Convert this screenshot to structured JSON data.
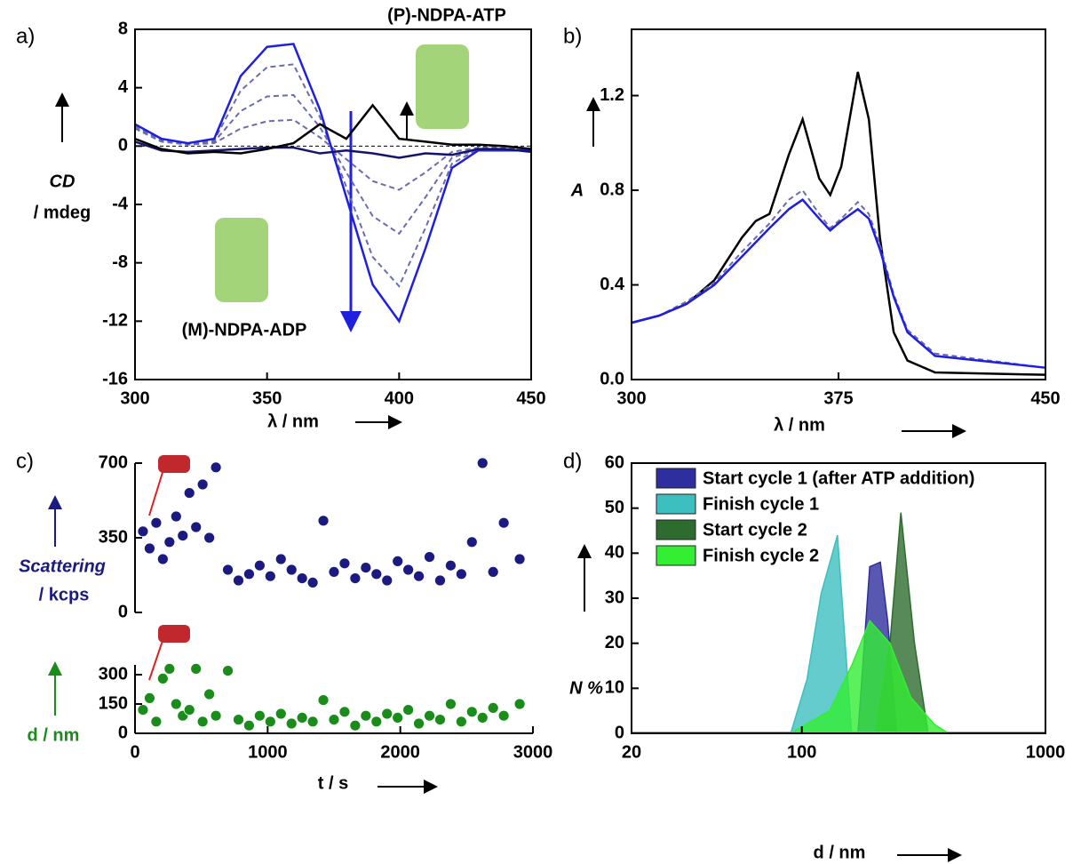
{
  "chart_data": [
    {
      "type": "line",
      "panel_label": "a)",
      "y_label": "CD",
      "y_unit": "/ mdeg",
      "x_label": "λ / nm",
      "annotations": [
        "(P)-NDPA-ATP",
        "(M)-NDPA-ADP"
      ],
      "zero_line": true,
      "xlim": [
        300,
        450
      ],
      "xticks": [
        300,
        350,
        400,
        450
      ],
      "ylim": [
        -16,
        8
      ],
      "yticks": [
        -16,
        -12,
        -8,
        -4,
        0,
        4,
        8
      ],
      "x": [
        300,
        310,
        320,
        330,
        340,
        350,
        360,
        370,
        380,
        390,
        400,
        410,
        420,
        430,
        440,
        450
      ],
      "series": [
        {
          "color": "#6b6bb0",
          "dashed": true,
          "values": [
            1.2,
            0.3,
            0.1,
            0.2,
            1.2,
            1.7,
            1.8,
            0.6,
            -0.9,
            -2.4,
            -3.0,
            -1.8,
            -0.4,
            -0.1,
            -0.1,
            -0.2
          ]
        },
        {
          "color": "#6b6bb0",
          "dashed": true,
          "values": [
            1.3,
            0.4,
            0.1,
            0.3,
            2.4,
            3.4,
            3.5,
            1.3,
            -1.8,
            -4.8,
            -6.0,
            -3.5,
            -0.8,
            -0.2,
            -0.2,
            -0.2
          ]
        },
        {
          "color": "#6b6bb0",
          "dashed": true,
          "values": [
            1.4,
            0.5,
            0.2,
            0.4,
            3.8,
            5.4,
            5.6,
            2.0,
            -2.8,
            -7.6,
            -9.6,
            -5.6,
            -1.2,
            -0.2,
            -0.3,
            -0.3
          ]
        },
        {
          "color": "#1f1fe0",
          "dashed": false,
          "values": [
            1.5,
            0.5,
            0.2,
            0.5,
            4.8,
            6.8,
            7.0,
            2.5,
            -3.5,
            -9.5,
            -12,
            -7,
            -1.5,
            -0.3,
            -0.3,
            -0.3
          ]
        },
        {
          "color": "#14146e",
          "dashed": false,
          "values": [
            0.3,
            -0.3,
            -0.4,
            -0.3,
            -0.2,
            -0.1,
            -0.1,
            -0.5,
            -0.3,
            -0.5,
            -0.8,
            -0.5,
            -0.6,
            -0.2,
            -0.2,
            -0.4
          ]
        },
        {
          "color": "#000000",
          "dashed": false,
          "values": [
            0.5,
            -0.2,
            -0.5,
            -0.4,
            -0.5,
            -0.2,
            0.2,
            1.5,
            0.5,
            2.8,
            0.5,
            0.3,
            0.1,
            0.1,
            0,
            -0.2
          ]
        }
      ]
    },
    {
      "type": "line",
      "panel_label": "b)",
      "y_label": "A",
      "x_label": "λ / nm",
      "xlim": [
        300,
        450
      ],
      "xticks": [
        300,
        375,
        450
      ],
      "ylim": [
        0,
        1.48
      ],
      "yticks": [
        {
          "value": 0,
          "label": "0.0"
        },
        0.4,
        0.8,
        1.2
      ],
      "x": [
        300,
        310,
        320,
        330,
        340,
        345,
        350,
        357,
        362,
        368,
        372,
        376,
        382,
        386,
        390,
        395,
        400,
        410,
        450
      ],
      "series": [
        {
          "color": "#000000",
          "dashed": false,
          "values": [
            0.24,
            0.27,
            0.32,
            0.42,
            0.6,
            0.67,
            0.7,
            0.95,
            1.1,
            0.85,
            0.78,
            0.9,
            1.3,
            1.1,
            0.6,
            0.2,
            0.08,
            0.03,
            0.02
          ]
        },
        {
          "color": "#6b6bb0",
          "dashed": true,
          "values": [
            0.24,
            0.27,
            0.33,
            0.41,
            0.54,
            0.6,
            0.66,
            0.76,
            0.8,
            0.7,
            0.64,
            0.68,
            0.75,
            0.7,
            0.57,
            0.36,
            0.21,
            0.11,
            0.05
          ]
        },
        {
          "color": "#1f1fe0",
          "dashed": false,
          "values": [
            0.24,
            0.27,
            0.32,
            0.4,
            0.52,
            0.58,
            0.64,
            0.72,
            0.76,
            0.68,
            0.63,
            0.67,
            0.72,
            0.68,
            0.55,
            0.35,
            0.2,
            0.1,
            0.05
          ]
        }
      ]
    },
    {
      "type": "scatter",
      "panel_label": "c)",
      "x_label": "t / s",
      "xlim": [
        0,
        3000
      ],
      "xticks": [
        0,
        1000,
        2000,
        3000
      ],
      "x": [
        60,
        110,
        160,
        210,
        260,
        310,
        360,
        410,
        460,
        510,
        560,
        610,
        700,
        780,
        860,
        940,
        1020,
        1100,
        1180,
        1260,
        1340,
        1420,
        1500,
        1580,
        1660,
        1740,
        1820,
        1900,
        1980,
        2060,
        2140,
        2220,
        2300,
        2380,
        2460,
        2540,
        2620,
        2700,
        2780,
        2900
      ],
      "subplots": [
        {
          "y_label": "Scattering",
          "y_unit": "/ kcps",
          "color": "#1a1a80",
          "ylim": [
            0,
            700
          ],
          "yticks": [
            0,
            350,
            700
          ],
          "values": [
            380,
            300,
            420,
            250,
            330,
            450,
            360,
            560,
            400,
            600,
            350,
            680,
            200,
            150,
            180,
            220,
            170,
            250,
            200,
            160,
            140,
            430,
            190,
            230,
            160,
            210,
            180,
            150,
            240,
            200,
            170,
            260,
            150,
            220,
            180,
            330,
            700,
            190,
            420,
            250
          ]
        },
        {
          "y_label": "d / nm",
          "color": "#1a8c1a",
          "ylim": [
            0,
            350
          ],
          "yticks": [
            0,
            150,
            300
          ],
          "values": [
            120,
            180,
            60,
            280,
            330,
            150,
            90,
            120,
            330,
            60,
            200,
            90,
            320,
            70,
            40,
            90,
            60,
            100,
            50,
            80,
            60,
            170,
            70,
            110,
            40,
            90,
            60,
            100,
            80,
            120,
            50,
            90,
            70,
            150,
            60,
            110,
            80,
            130,
            90,
            150
          ]
        }
      ]
    },
    {
      "type": "area",
      "panel_label": "d)",
      "y_label": "N %",
      "x_label": "d / nm",
      "log_x": true,
      "xlim": [
        20,
        1000
      ],
      "xticks": [
        20,
        100,
        1000
      ],
      "ylim": [
        0,
        60
      ],
      "yticks": [
        0,
        10,
        20,
        30,
        40,
        50,
        60
      ],
      "series": [
        {
          "name": "Start cycle 1 (after ATP addition)",
          "color": "#2e2e9e",
          "x": [
            170,
            190,
            210,
            225,
            245
          ],
          "values": [
            0,
            37,
            38,
            25,
            0
          ]
        },
        {
          "name": "Finish cycle 1",
          "color": "#3dbfbf",
          "x": [
            90,
            105,
            120,
            140,
            160
          ],
          "values": [
            0,
            12,
            31,
            44,
            0
          ]
        },
        {
          "name": "Start cycle 2",
          "color": "#2e6b2e",
          "x": [
            200,
            230,
            255,
            290,
            330
          ],
          "values": [
            0,
            20,
            49,
            20,
            0
          ]
        },
        {
          "name": "Finish cycle 2",
          "color": "#33ee33",
          "x": [
            90,
            130,
            160,
            190,
            230,
            280,
            350,
            400
          ],
          "values": [
            0,
            5,
            15,
            25,
            20,
            8,
            2,
            0
          ]
        }
      ]
    }
  ]
}
